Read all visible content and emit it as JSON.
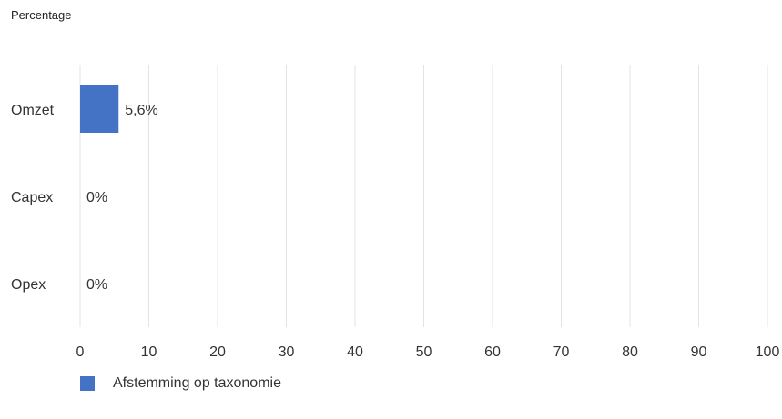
{
  "chart_data": {
    "type": "bar",
    "orientation": "horizontal",
    "unit_label": "Percentage",
    "categories": [
      "Omzet",
      "Capex",
      "Opex"
    ],
    "series": [
      {
        "name": "Afstemming op taxonomie",
        "values": [
          5.6,
          0,
          0
        ],
        "color": "#4472c4"
      }
    ],
    "data_labels": [
      "5,6%",
      "0%",
      "0%"
    ],
    "xlim": [
      0,
      100
    ],
    "x_ticks": [
      "0",
      "10",
      "20",
      "30",
      "40",
      "50",
      "60",
      "70",
      "80",
      "90",
      "100"
    ],
    "grid": true,
    "legend_position": "bottom-left"
  }
}
